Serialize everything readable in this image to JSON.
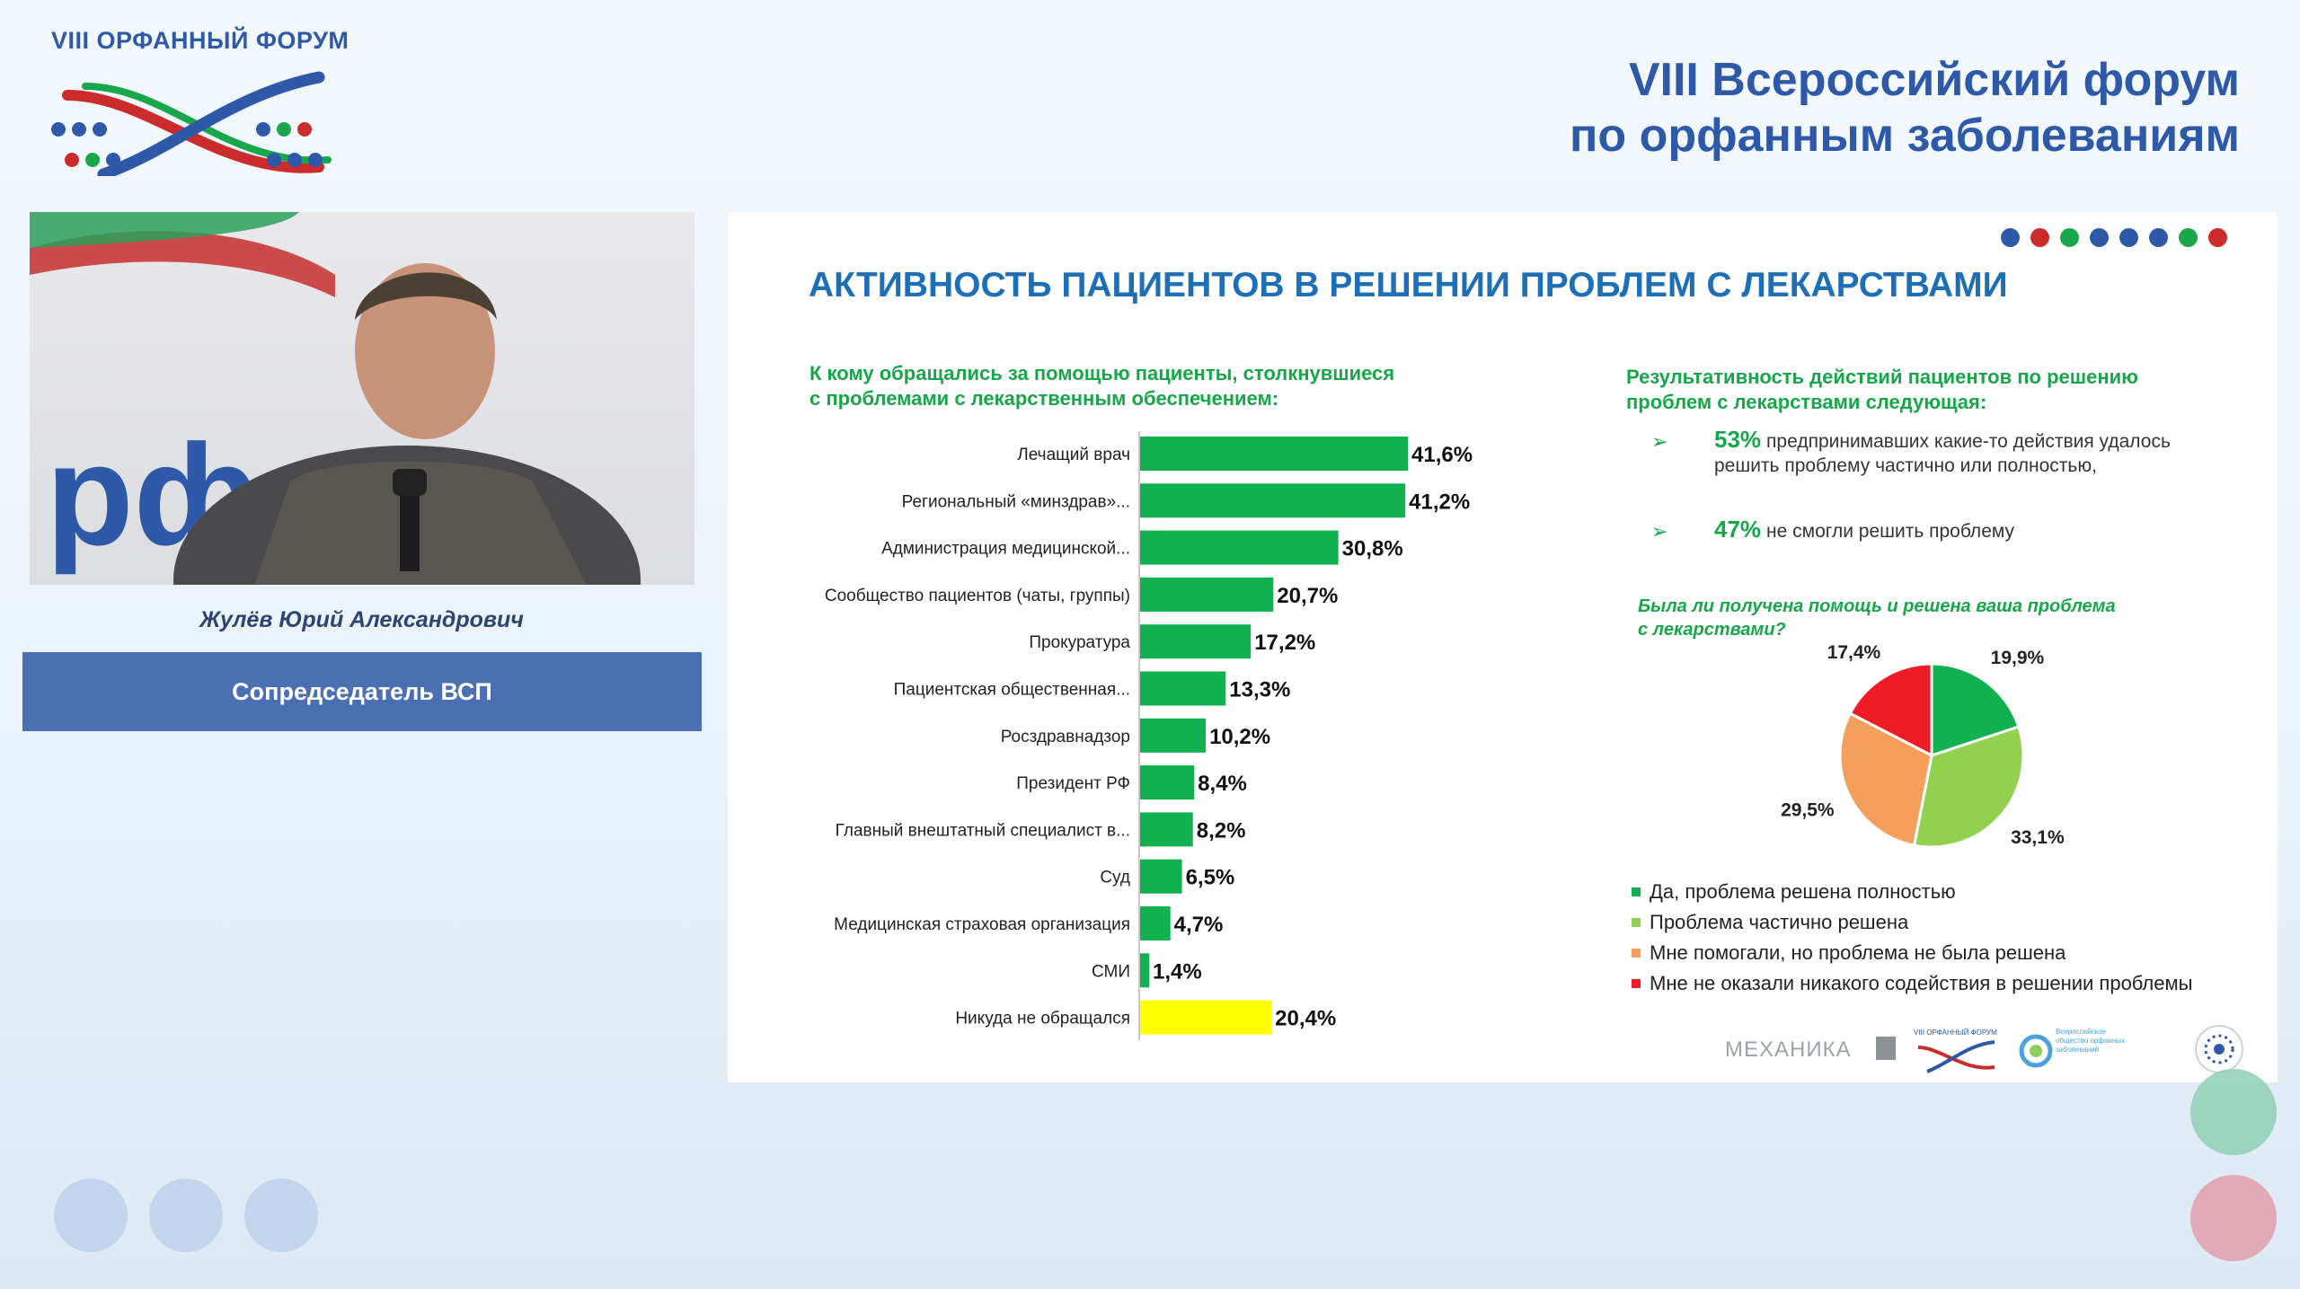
{
  "header": {
    "logo_caption": "VIII ОРФАННЫЙ ФОРУМ",
    "title_line1": "VIII  Всероссийский  форум",
    "title_line2": "по орфанным заболеваниям"
  },
  "speaker": {
    "name": "Жулёв Юрий Александрович",
    "role": "Сопредседатель ВСП",
    "backdrop_text": "рф ым"
  },
  "slide": {
    "title": "АКТИВНОСТЬ ПАЦИЕНТОВ В РЕШЕНИИ ПРОБЛЕМ С ЛЕКАРСТВАМИ",
    "dots": [
      "#2e59a8",
      "#cc2b2b",
      "#1aa64b",
      "#2e59a8",
      "#2e59a8",
      "#2e59a8",
      "#1aa64b",
      "#cc2b2b"
    ],
    "bar_subtitle_line1": "К кому обращались за помощью пациенты, столкнувшиеся",
    "bar_subtitle_line2": "с проблемами с лекарственным обеспечением:",
    "right_title_line1": "Результативность действий пациентов по решению",
    "right_title_line2": "проблем с лекарствами следующая:",
    "stats": [
      {
        "pct": "53%",
        "text": "предпринимавших какие-то действия удалось решить проблему частично или полностью,"
      },
      {
        "pct": "47%",
        "text": "не смогли решить проблему"
      }
    ],
    "pie_question_line1": "Была ли получена помощь и решена ваша проблема",
    "pie_question_line2": "с лекарствами?",
    "partners": {
      "mechanika": "МЕХАНИКА",
      "forum": "VIII ОРФАННЫЙ ФОРУМ",
      "society": "Всероссийское общество орфанных заболеваний"
    }
  },
  "chart_data": [
    {
      "type": "bar",
      "orientation": "horizontal",
      "categories": [
        "Лечащий врач",
        "Региональный «минздрав»...",
        "Администрация медицинской...",
        "Сообщество пациентов (чаты, группы)",
        "Прокуратура",
        "Пациентская общественная...",
        "Росздравнадзор",
        "Президент РФ",
        "Главный внештатный специалист в...",
        "Суд",
        "Медицинская страховая организация",
        "СМИ",
        "Никуда не обращался"
      ],
      "values": [
        41.6,
        41.2,
        30.8,
        20.7,
        17.2,
        13.3,
        10.2,
        8.4,
        8.2,
        6.5,
        4.7,
        1.4,
        20.4
      ],
      "labels": [
        "41,6%",
        "41,2%",
        "30,8%",
        "20,7%",
        "17,2%",
        "13,3%",
        "10,2%",
        "8,4%",
        "8,2%",
        "6,5%",
        "4,7%",
        "1,4%",
        "20,4%"
      ],
      "colors": [
        "#12b150",
        "#12b150",
        "#12b150",
        "#12b150",
        "#12b150",
        "#12b150",
        "#12b150",
        "#12b150",
        "#12b150",
        "#12b150",
        "#12b150",
        "#12b150",
        "#ffff00"
      ],
      "xlim": [
        0,
        45
      ]
    },
    {
      "type": "pie",
      "slices": [
        {
          "label": "Да, проблема решена полностью",
          "value": 19.9,
          "text": "19,9%",
          "color": "#12b150"
        },
        {
          "label": "Проблема частично решена",
          "value": 33.1,
          "text": "33,1%",
          "color": "#92d050"
        },
        {
          "label": "Мне помогали, но проблема не была решена",
          "value": 29.5,
          "text": "29,5%",
          "color": "#f4a05c"
        },
        {
          "label": "Мне не оказали никакого содействия в решении проблемы",
          "value": 17.4,
          "text": "17,4%",
          "color": "#ee1c25"
        }
      ]
    }
  ]
}
